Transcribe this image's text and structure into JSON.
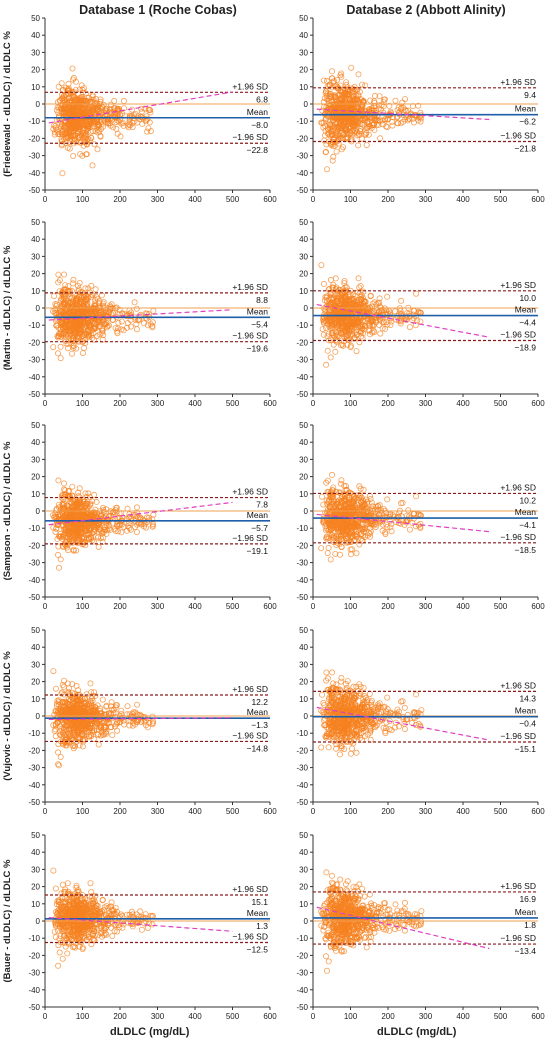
{
  "columns": [
    "Database 1 (Roche Cobas)",
    "Database 2 (Abbott Alinity)"
  ],
  "x_axis_label": "dLDLC  (mg/dL)",
  "colors": {
    "points": "#f58220",
    "mean_line": "#1f5ea8",
    "sd_line": "#8b1a1a",
    "zero_line": "#f0a050",
    "trend_line": "#e040c0"
  },
  "chart_data": [
    {
      "type": "scatter",
      "database": "Database 1 (Roche Cobas)",
      "ylabel": "(Friedewald - dLDLC) / dLDLC %",
      "xlim": [
        0,
        600
      ],
      "ylim": [
        -50,
        50
      ],
      "xticks": [
        0,
        100,
        200,
        300,
        400,
        500,
        600
      ],
      "yticks": [
        50,
        40,
        30,
        20,
        10,
        0,
        -10,
        -20,
        -30,
        -40,
        -50
      ],
      "upper_loa": 6.8,
      "mean_bias": -8.0,
      "lower_loa": -22.8,
      "trend": {
        "x": [
          10,
          500
        ],
        "y": [
          -11,
          7
        ]
      },
      "labels": {
        "upper": "+1.96 SD",
        "mean": "Mean",
        "lower": "−1.96 SD",
        "upper_value": "6.8",
        "mean_value": "−8.0",
        "lower_value": "−22.8"
      }
    },
    {
      "type": "scatter",
      "database": "Database 2 (Abbott Alinity)",
      "ylabel": "",
      "xlim": [
        0,
        600
      ],
      "ylim": [
        -50,
        50
      ],
      "xticks": [
        0,
        100,
        200,
        300,
        400,
        500,
        600
      ],
      "yticks": [
        50,
        40,
        30,
        20,
        10,
        0,
        -10,
        -20,
        -30,
        -40,
        -50
      ],
      "upper_loa": 9.4,
      "mean_bias": -6.2,
      "lower_loa": -21.8,
      "trend": {
        "x": [
          10,
          470
        ],
        "y": [
          -3,
          -9
        ]
      },
      "labels": {
        "upper": "+1.96 SD",
        "mean": "Mean",
        "lower": "−1.96 SD",
        "upper_value": "9.4",
        "mean_value": "−6.2",
        "lower_value": "−21.8"
      }
    },
    {
      "type": "scatter",
      "database": "Database 1 (Roche Cobas)",
      "ylabel": "(Martin - dLDLC) / dLDLC %",
      "xlim": [
        0,
        600
      ],
      "ylim": [
        -50,
        50
      ],
      "xticks": [
        0,
        100,
        200,
        300,
        400,
        500,
        600
      ],
      "yticks": [
        50,
        40,
        30,
        20,
        10,
        0,
        -10,
        -20,
        -30,
        -40,
        -50
      ],
      "upper_loa": 8.8,
      "mean_bias": -5.4,
      "lower_loa": -19.6,
      "trend": {
        "x": [
          10,
          500
        ],
        "y": [
          -7,
          -1
        ]
      },
      "labels": {
        "upper": "+1.96 SD",
        "mean": "Mean",
        "lower": "−1.96 SD",
        "upper_value": "8.8",
        "mean_value": "−5.4",
        "lower_value": "−19.6"
      }
    },
    {
      "type": "scatter",
      "database": "Database 2 (Abbott Alinity)",
      "ylabel": "",
      "xlim": [
        0,
        600
      ],
      "ylim": [
        -50,
        50
      ],
      "xticks": [
        0,
        100,
        200,
        300,
        400,
        500,
        600
      ],
      "yticks": [
        50,
        40,
        30,
        20,
        10,
        0,
        -10,
        -20,
        -30,
        -40,
        -50
      ],
      "upper_loa": 10.0,
      "mean_bias": -4.4,
      "lower_loa": -18.9,
      "trend": {
        "x": [
          10,
          470
        ],
        "y": [
          2,
          -17
        ]
      },
      "labels": {
        "upper": "+1.96 SD",
        "mean": "Mean",
        "lower": "−1.96 SD",
        "upper_value": "10.0",
        "mean_value": "−4.4",
        "lower_value": "−18.9"
      }
    },
    {
      "type": "scatter",
      "database": "Database 1 (Roche Cobas)",
      "ylabel": "(Sampson - dLDLC) / dLDLC %",
      "xlim": [
        0,
        600
      ],
      "ylim": [
        -50,
        50
      ],
      "xticks": [
        0,
        100,
        200,
        300,
        400,
        500,
        600
      ],
      "yticks": [
        50,
        40,
        30,
        20,
        10,
        0,
        -10,
        -20,
        -30,
        -40,
        -50
      ],
      "upper_loa": 7.8,
      "mean_bias": -5.7,
      "lower_loa": -19.1,
      "trend": {
        "x": [
          10,
          500
        ],
        "y": [
          -8,
          5
        ]
      },
      "labels": {
        "upper": "+1.96 SD",
        "mean": "Mean",
        "lower": "−1.96 SD",
        "upper_value": "7.8",
        "mean_value": "−5.7",
        "lower_value": "−19.1"
      }
    },
    {
      "type": "scatter",
      "database": "Database 2 (Abbott Alinity)",
      "ylabel": "",
      "xlim": [
        0,
        600
      ],
      "ylim": [
        -50,
        50
      ],
      "xticks": [
        0,
        100,
        200,
        300,
        400,
        500,
        600
      ],
      "yticks": [
        50,
        40,
        30,
        20,
        10,
        0,
        -10,
        -20,
        -30,
        -40,
        -50
      ],
      "upper_loa": 10.2,
      "mean_bias": -4.1,
      "lower_loa": -18.5,
      "trend": {
        "x": [
          10,
          470
        ],
        "y": [
          -2,
          -12
        ]
      },
      "labels": {
        "upper": "+1.96 SD",
        "mean": "Mean",
        "lower": "−1.96 SD",
        "upper_value": "10.2",
        "mean_value": "−4.1",
        "lower_value": "−18.5"
      }
    },
    {
      "type": "scatter",
      "database": "Database 1 (Roche Cobas)",
      "ylabel": "(Vujovic - dLDLC) / dLDLC %",
      "xlim": [
        0,
        600
      ],
      "ylim": [
        -50,
        50
      ],
      "xticks": [
        0,
        100,
        200,
        300,
        400,
        500,
        600
      ],
      "yticks": [
        50,
        40,
        30,
        20,
        10,
        0,
        -10,
        -20,
        -30,
        -40,
        -50
      ],
      "upper_loa": 12.2,
      "mean_bias": -1.3,
      "lower_loa": -14.8,
      "trend": {
        "x": [
          10,
          500
        ],
        "y": [
          -2,
          -1
        ]
      },
      "labels": {
        "upper": "+1.96 SD",
        "mean": "Mean",
        "lower": "−1.96 SD",
        "upper_value": "12.2",
        "mean_value": "−1.3",
        "lower_value": "−14.8"
      }
    },
    {
      "type": "scatter",
      "database": "Database 2 (Abbott Alinity)",
      "ylabel": "",
      "xlim": [
        0,
        600
      ],
      "ylim": [
        -50,
        50
      ],
      "xticks": [
        0,
        100,
        200,
        300,
        400,
        500,
        600
      ],
      "yticks": [
        50,
        40,
        30,
        20,
        10,
        0,
        -10,
        -20,
        -30,
        -40,
        -50
      ],
      "upper_loa": 14.3,
      "mean_bias": -0.4,
      "lower_loa": -15.1,
      "trend": {
        "x": [
          10,
          470
        ],
        "y": [
          5,
          -14
        ]
      },
      "labels": {
        "upper": "+1.96 SD",
        "mean": "Mean",
        "lower": "−1.96 SD",
        "upper_value": "14.3",
        "mean_value": "−0.4",
        "lower_value": "−15.1"
      }
    },
    {
      "type": "scatter",
      "database": "Database 1 (Roche Cobas)",
      "ylabel": "(Bauer - dLDLC) / dLDLC %",
      "xlim": [
        0,
        600
      ],
      "ylim": [
        -50,
        50
      ],
      "xticks": [
        0,
        100,
        200,
        300,
        400,
        500,
        600
      ],
      "yticks": [
        50,
        40,
        30,
        20,
        10,
        0,
        -10,
        -20,
        -30,
        -40,
        -50
      ],
      "upper_loa": 15.1,
      "mean_bias": 1.3,
      "lower_loa": -12.5,
      "trend": {
        "x": [
          10,
          500
        ],
        "y": [
          2,
          -6
        ]
      },
      "labels": {
        "upper": "+1.96 SD",
        "mean": "Mean",
        "lower": "−1.96 SD",
        "upper_value": "15.1",
        "mean_value": "1.3",
        "lower_value": "−12.5"
      }
    },
    {
      "type": "scatter",
      "database": "Database 2 (Abbott Alinity)",
      "ylabel": "",
      "xlim": [
        0,
        600
      ],
      "ylim": [
        -50,
        50
      ],
      "xticks": [
        0,
        100,
        200,
        300,
        400,
        500,
        600
      ],
      "yticks": [
        50,
        40,
        30,
        20,
        10,
        0,
        -10,
        -20,
        -30,
        -40,
        -50
      ],
      "upper_loa": 16.9,
      "mean_bias": 1.8,
      "lower_loa": -13.4,
      "trend": {
        "x": [
          10,
          470
        ],
        "y": [
          8,
          -16
        ]
      },
      "labels": {
        "upper": "+1.96 SD",
        "mean": "Mean",
        "lower": "−1.96 SD",
        "upper_value": "16.9",
        "mean_value": "1.8",
        "lower_value": "−13.4"
      }
    }
  ]
}
